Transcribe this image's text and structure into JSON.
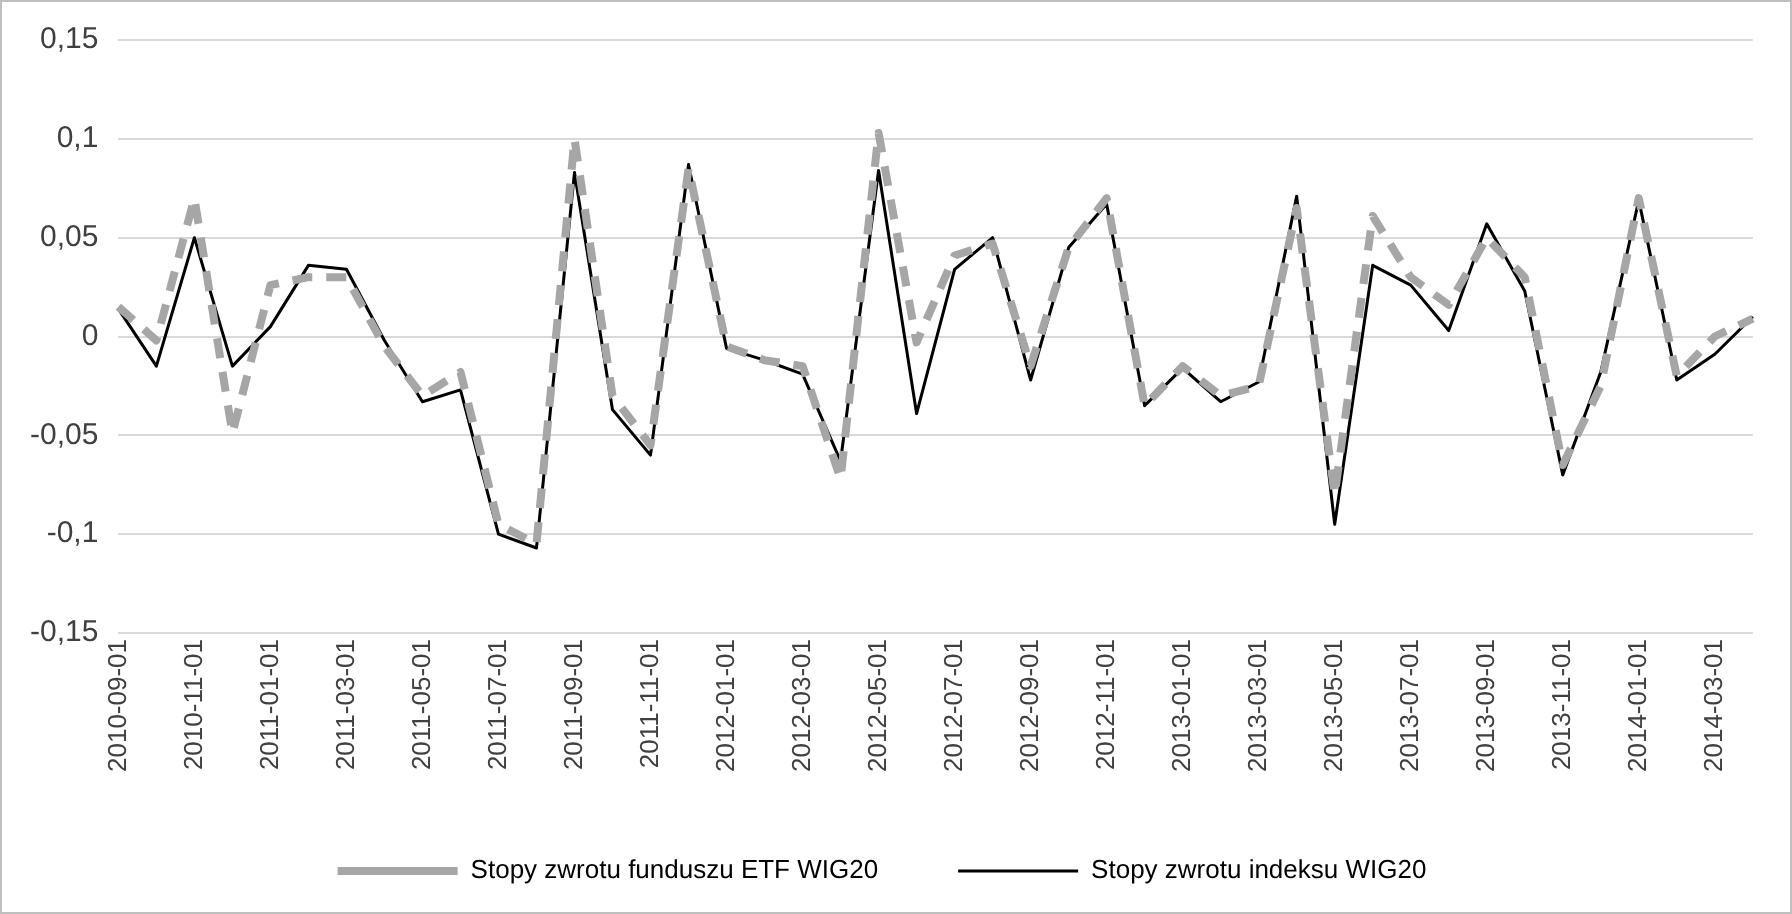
{
  "chart_data": {
    "type": "line",
    "categories": [
      "2010-09-01",
      null,
      "2010-11-01",
      null,
      "2011-01-01",
      null,
      "2011-03-01",
      null,
      "2011-05-01",
      null,
      "2011-07-01",
      null,
      "2011-09-01",
      null,
      "2011-11-01",
      null,
      "2012-01-01",
      null,
      "2012-03-01",
      null,
      "2012-05-01",
      null,
      "2012-07-01",
      null,
      "2012-09-01",
      null,
      "2012-11-01",
      null,
      "2013-01-01",
      null,
      "2013-03-01",
      null,
      "2013-05-01",
      null,
      "2013-07-01",
      null,
      "2013-09-01",
      null,
      "2013-11-01",
      null,
      "2014-01-01",
      null,
      "2014-03-01",
      null
    ],
    "series": [
      {
        "name": "Stopy zwrotu funduszu ETF WIG20",
        "color": "#a6a6a6",
        "line_style": "dashed",
        "values": [
          0.015,
          -0.002,
          0.07,
          -0.049,
          0.026,
          0.03,
          0.03,
          -0.005,
          -0.03,
          -0.018,
          -0.095,
          -0.105,
          0.1,
          -0.03,
          -0.055,
          0.085,
          -0.005,
          -0.012,
          -0.015,
          -0.072,
          0.103,
          -0.003,
          0.041,
          0.047,
          -0.015,
          0.045,
          0.07,
          -0.035,
          -0.015,
          -0.03,
          -0.025,
          0.065,
          -0.08,
          0.061,
          0.03,
          0.016,
          0.05,
          0.03,
          -0.065,
          -0.025,
          0.07,
          -0.02,
          0,
          0.009
        ]
      },
      {
        "name": "Stopy zwrotu indeksu WIG20",
        "color": "#000000",
        "line_style": "solid",
        "values": [
          0.014,
          -0.015,
          0.05,
          -0.015,
          0.005,
          0.036,
          0.034,
          -0.002,
          -0.033,
          -0.027,
          -0.1,
          -0.107,
          0.083,
          -0.037,
          -0.06,
          0.087,
          -0.006,
          -0.012,
          -0.019,
          -0.063,
          0.084,
          -0.039,
          0.034,
          0.05,
          -0.022,
          0.045,
          0.067,
          -0.035,
          -0.016,
          -0.033,
          -0.023,
          0.071,
          -0.095,
          0.036,
          0.026,
          0.003,
          0.057,
          0.023,
          -0.07,
          -0.018,
          0.069,
          -0.022,
          -0.009,
          0.01
        ]
      }
    ],
    "ylim": [
      -0.15,
      0.15
    ],
    "yticks": [
      {
        "value": -0.15,
        "label": "-0,15"
      },
      {
        "value": -0.1,
        "label": "-0,1"
      },
      {
        "value": -0.05,
        "label": "-0,05"
      },
      0,
      {
        "value": 0.05,
        "label": "0,05"
      },
      {
        "value": 0.1,
        "label": "0,1"
      },
      {
        "value": 0.15,
        "label": "0,15"
      }
    ],
    "grid": "y",
    "legend": "bottom",
    "marker": "none"
  }
}
